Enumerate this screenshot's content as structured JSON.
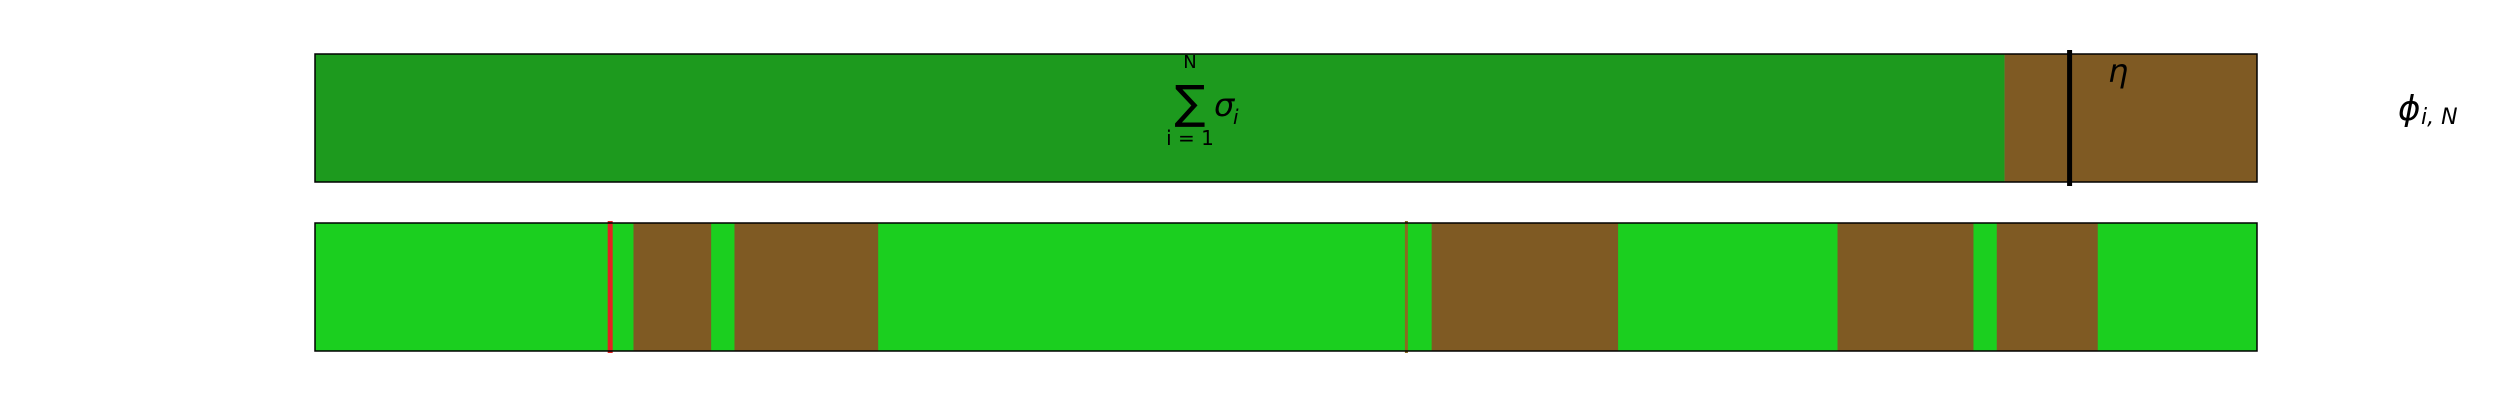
{
  "colors": {
    "top_green": "#1d9a1e",
    "bottom_green": "#1bcf1f",
    "brown": "#7f5a23",
    "black_marker": "#000000",
    "red_marker": "#e32222",
    "olive_marker": "#8a6a20",
    "outline": "#000000"
  },
  "top_bar": {
    "split_fraction": 0.87,
    "marker_fraction": 0.9035,
    "sum_symbol": "∑",
    "sum_upper": "N",
    "sum_lower": "i = 1",
    "sum_term": "σ",
    "sum_term_sub": "i",
    "marker_label": "η"
  },
  "right_label": {
    "symbol": "ϕ",
    "subscript": "i, N"
  },
  "bottom_bar": {
    "segments": [
      {
        "start": 0.0,
        "end": 0.164,
        "kind": "green"
      },
      {
        "start": 0.164,
        "end": 0.204,
        "kind": "brown"
      },
      {
        "start": 0.204,
        "end": 0.216,
        "kind": "green"
      },
      {
        "start": 0.216,
        "end": 0.29,
        "kind": "brown"
      },
      {
        "start": 0.29,
        "end": 0.575,
        "kind": "green"
      },
      {
        "start": 0.575,
        "end": 0.671,
        "kind": "brown"
      },
      {
        "start": 0.671,
        "end": 0.784,
        "kind": "green"
      },
      {
        "start": 0.784,
        "end": 0.854,
        "kind": "brown"
      },
      {
        "start": 0.854,
        "end": 0.866,
        "kind": "green"
      },
      {
        "start": 0.866,
        "end": 0.918,
        "kind": "brown"
      },
      {
        "start": 0.918,
        "end": 1.0,
        "kind": "green"
      }
    ],
    "markers": [
      {
        "at": 0.152,
        "kind": "red"
      },
      {
        "at": 0.562,
        "kind": "olive"
      }
    ]
  }
}
